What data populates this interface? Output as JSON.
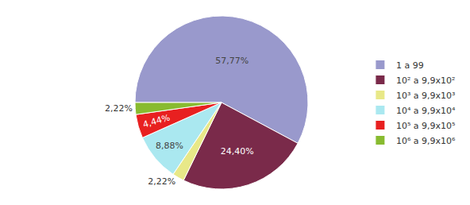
{
  "chart_data": {
    "type": "pie",
    "categories": [
      "1 a 99",
      "10² a 9,9x10²",
      "10³ a 9,9x10³",
      "10⁴ a 9,9x10⁴",
      "10⁵ a 9,9x10⁵",
      "10⁶ a 9,9x10⁶"
    ],
    "values": [
      57.77,
      24.4,
      2.22,
      8.88,
      4.44,
      2.22
    ],
    "value_labels": [
      "57,77%",
      "24,40%",
      "2,22%",
      "8,88%",
      "4,44%",
      "2,22%"
    ],
    "data_labels": true,
    "colors": [
      "#9999cc",
      "#7a2a4a",
      "#e8e888",
      "#aae8f0",
      "#e82020",
      "#88bb30"
    ],
    "legend": "right"
  }
}
